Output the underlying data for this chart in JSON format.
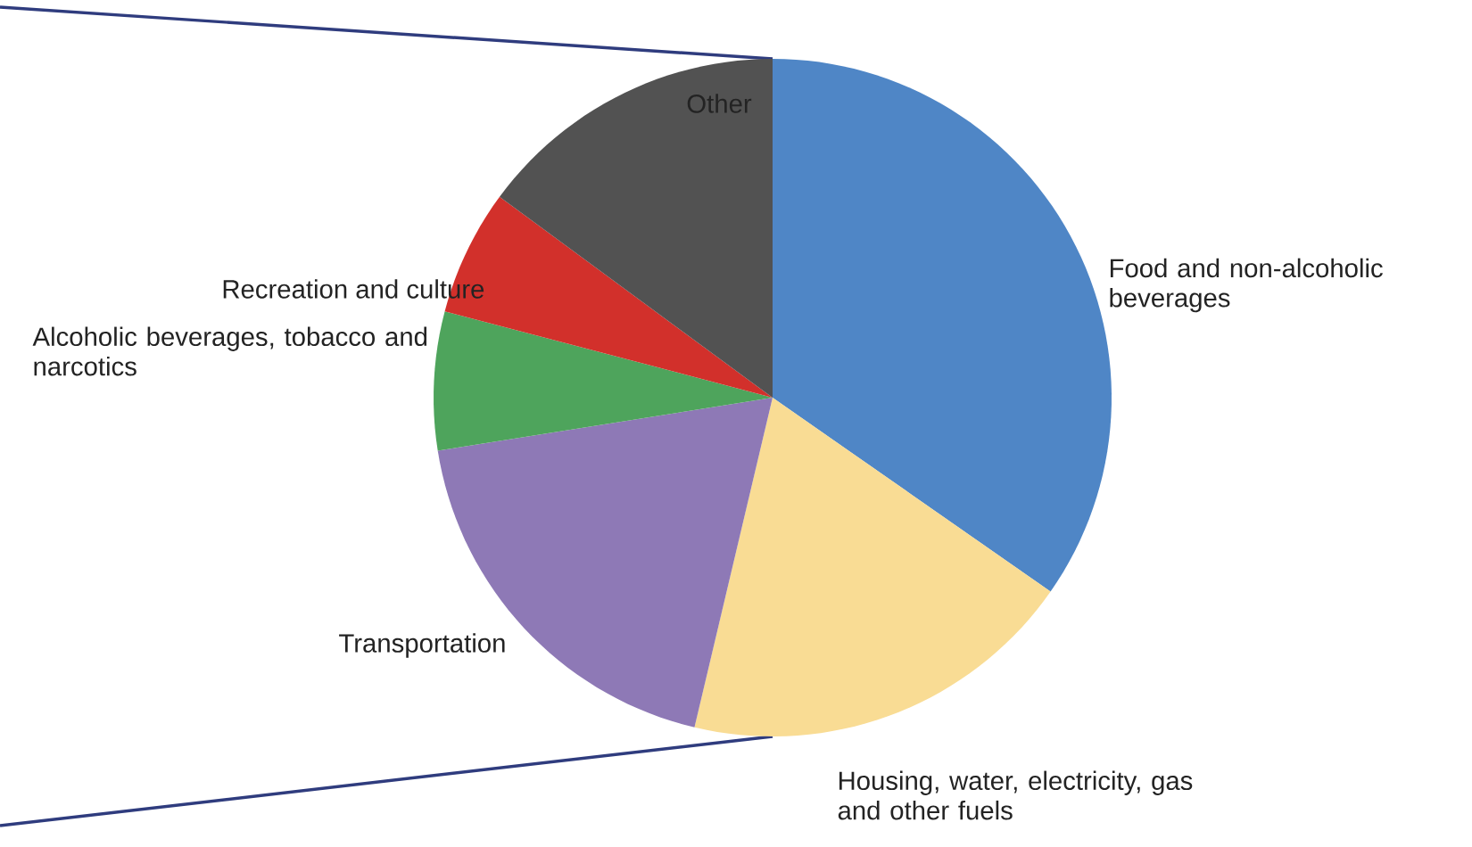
{
  "chart_data": {
    "type": "pie",
    "categories": [
      "Food and non-alcoholic beverages",
      "Housing, water, electricity, gas and other fuels",
      "Transportation",
      "Alcoholic beverages, tobacco and narcotics",
      "Recreation and culture",
      "Other"
    ],
    "values": [
      34.7,
      19.0,
      18.8,
      6.6,
      6.0,
      14.9
    ],
    "colors": [
      "#4f86c6",
      "#f9dc94",
      "#8e79b6",
      "#4ea45c",
      "#d2302b",
      "#525252"
    ]
  }
}
